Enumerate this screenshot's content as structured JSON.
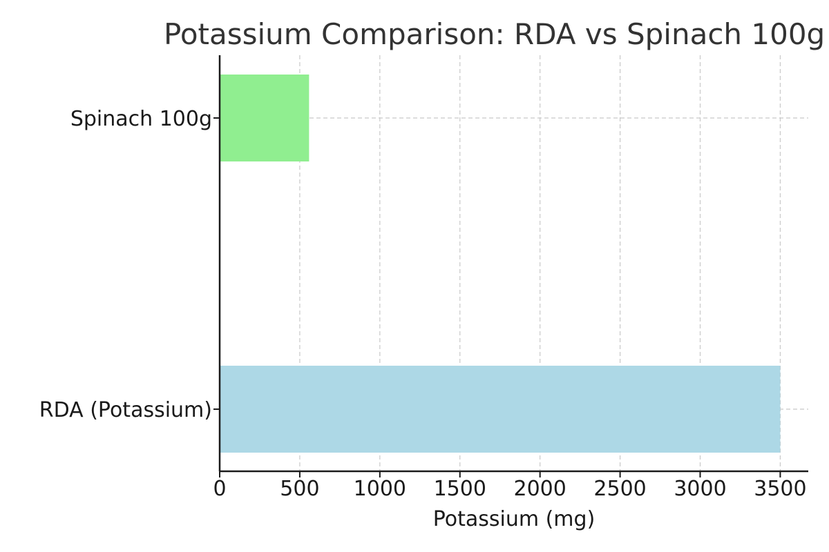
{
  "chart_data": {
    "type": "bar",
    "orientation": "horizontal",
    "title": "Potassium Comparison: RDA vs Spinach 100g",
    "xlabel": "Potassium (mg)",
    "ylabel": "",
    "categories": [
      "RDA (Potassium)",
      "Spinach 100g"
    ],
    "values": [
      3500,
      558
    ],
    "bar_colors": [
      "#add8e6",
      "#90ee90"
    ],
    "xlim": [
      0,
      3675
    ],
    "x_ticks": [
      0,
      500,
      1000,
      1500,
      2000,
      2500,
      3000,
      3500
    ],
    "x_tick_labels": [
      "0",
      "500",
      "1000",
      "1500",
      "2000",
      "2500",
      "3000",
      "3500"
    ],
    "grid": true,
    "legend": false
  }
}
